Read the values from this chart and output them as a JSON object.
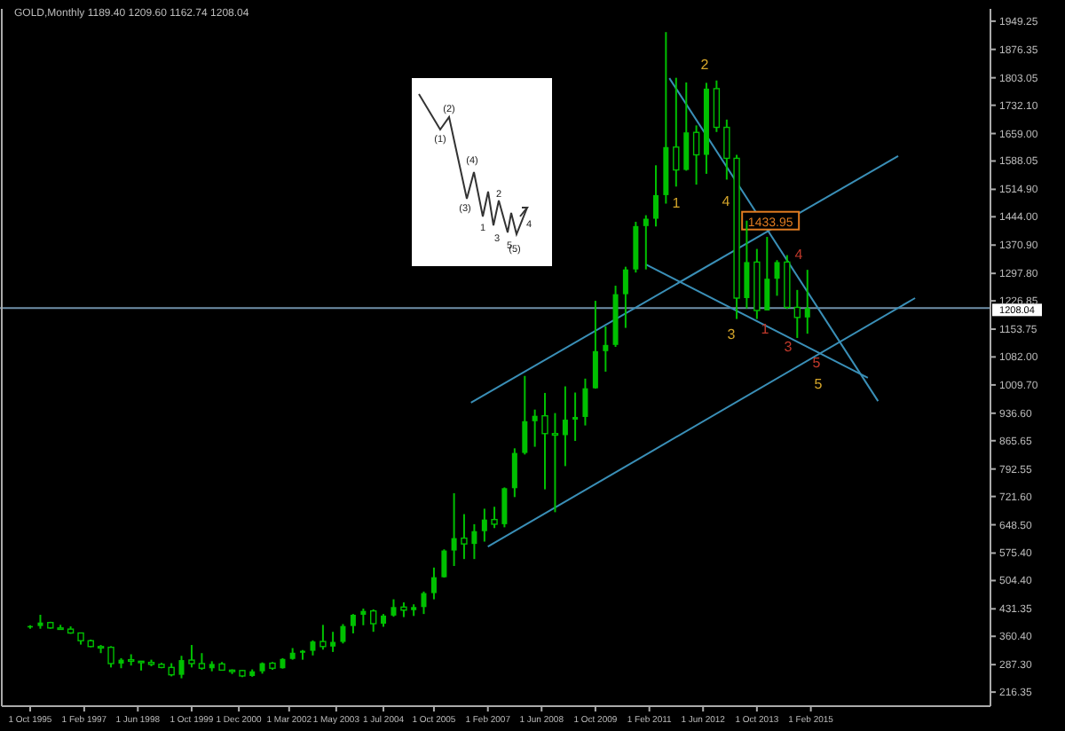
{
  "chart_data": {
    "type": "candlestick",
    "title": "GOLD,Monthly  1189.40 1209.60 1162.74 1208.04",
    "x": [
      "1995-10",
      "1996-01",
      "1996-04",
      "1996-07",
      "1996-10",
      "1997-01",
      "1997-04",
      "1997-07",
      "1997-10",
      "1998-01",
      "1998-04",
      "1998-07",
      "1998-10",
      "1999-01",
      "1999-04",
      "1999-07",
      "1999-10",
      "2000-01",
      "2000-04",
      "2000-07",
      "2000-10",
      "2001-01",
      "2001-04",
      "2001-07",
      "2001-10",
      "2002-01",
      "2002-04",
      "2002-07",
      "2002-10",
      "2003-01",
      "2003-04",
      "2003-07",
      "2003-10",
      "2004-01",
      "2004-04",
      "2004-07",
      "2004-10",
      "2005-01",
      "2005-04",
      "2005-07",
      "2005-10",
      "2006-01",
      "2006-04",
      "2006-07",
      "2006-10",
      "2007-01",
      "2007-04",
      "2007-07",
      "2007-10",
      "2008-01",
      "2008-04",
      "2008-07",
      "2008-10",
      "2009-01",
      "2009-04",
      "2009-07",
      "2009-10",
      "2010-01",
      "2010-04",
      "2010-07",
      "2010-10",
      "2011-01",
      "2011-04",
      "2011-07",
      "2011-10",
      "2012-01",
      "2012-04",
      "2012-07",
      "2012-10",
      "2013-01",
      "2013-04",
      "2013-07",
      "2013-10",
      "2014-01",
      "2014-04",
      "2014-07",
      "2014-10",
      "2015-01"
    ],
    "ohlc": [
      [
        384,
        389,
        380,
        387
      ],
      [
        387,
        416,
        380,
        396
      ],
      [
        396,
        398,
        380,
        382
      ],
      [
        382,
        390,
        378,
        379
      ],
      [
        379,
        386,
        367,
        369
      ],
      [
        369,
        370,
        339,
        349
      ],
      [
        349,
        352,
        332,
        334
      ],
      [
        334,
        338,
        317,
        332
      ],
      [
        332,
        335,
        280,
        290
      ],
      [
        290,
        304,
        278,
        300
      ],
      [
        300,
        314,
        285,
        296
      ],
      [
        296,
        297,
        272,
        293
      ],
      [
        293,
        300,
        283,
        288
      ],
      [
        288,
        292,
        278,
        280
      ],
      [
        280,
        291,
        257,
        261
      ],
      [
        261,
        310,
        252,
        299
      ],
      [
        299,
        338,
        280,
        290
      ],
      [
        290,
        317,
        274,
        278
      ],
      [
        278,
        296,
        270,
        289
      ],
      [
        289,
        294,
        272,
        273
      ],
      [
        273,
        275,
        263,
        272
      ],
      [
        272,
        274,
        255,
        258
      ],
      [
        258,
        275,
        256,
        270
      ],
      [
        270,
        293,
        264,
        291
      ],
      [
        291,
        294,
        274,
        278
      ],
      [
        278,
        304,
        277,
        302
      ],
      [
        302,
        330,
        300,
        318
      ],
      [
        318,
        325,
        300,
        323
      ],
      [
        323,
        350,
        311,
        347
      ],
      [
        347,
        390,
        326,
        334
      ],
      [
        334,
        372,
        320,
        346
      ],
      [
        346,
        392,
        342,
        387
      ],
      [
        387,
        418,
        368,
        416
      ],
      [
        416,
        432,
        389,
        426
      ],
      [
        426,
        430,
        372,
        393
      ],
      [
        393,
        418,
        385,
        414
      ],
      [
        414,
        456,
        411,
        436
      ],
      [
        436,
        448,
        410,
        428
      ],
      [
        428,
        443,
        413,
        436
      ],
      [
        436,
        476,
        418,
        472
      ],
      [
        472,
        538,
        456,
        513
      ],
      [
        513,
        585,
        512,
        582
      ],
      [
        582,
        730,
        542,
        614
      ],
      [
        614,
        676,
        560,
        599
      ],
      [
        599,
        650,
        560,
        632
      ],
      [
        632,
        690,
        605,
        662
      ],
      [
        662,
        695,
        640,
        650
      ],
      [
        650,
        745,
        642,
        743
      ],
      [
        743,
        846,
        720,
        834
      ],
      [
        834,
        1033,
        830,
        916
      ],
      [
        916,
        946,
        850,
        930
      ],
      [
        930,
        989,
        740,
        884
      ],
      [
        884,
        937,
        681,
        880
      ],
      [
        880,
        1006,
        800,
        920
      ],
      [
        920,
        990,
        865,
        927
      ],
      [
        927,
        1026,
        905,
        1001
      ],
      [
        1001,
        1227,
        1000,
        1097
      ],
      [
        1097,
        1161,
        1044,
        1113
      ],
      [
        1113,
        1266,
        1108,
        1244
      ],
      [
        1244,
        1315,
        1157,
        1308
      ],
      [
        1308,
        1431,
        1300,
        1420
      ],
      [
        1420,
        1448,
        1308,
        1439
      ],
      [
        1439,
        1577,
        1419,
        1500
      ],
      [
        1500,
        1921,
        1478,
        1624
      ],
      [
        1624,
        1803,
        1522,
        1565
      ],
      [
        1565,
        1791,
        1563,
        1662
      ],
      [
        1662,
        1680,
        1527,
        1604
      ],
      [
        1604,
        1790,
        1555,
        1775
      ],
      [
        1775,
        1796,
        1663,
        1675
      ],
      [
        1675,
        1695,
        1540,
        1595
      ],
      [
        1595,
        1604,
        1180,
        1234
      ],
      [
        1234,
        1434,
        1207,
        1327
      ],
      [
        1327,
        1361,
        1180,
        1202
      ],
      [
        1202,
        1392,
        1202,
        1284
      ],
      [
        1284,
        1332,
        1240,
        1327
      ],
      [
        1327,
        1345,
        1206,
        1210
      ],
      [
        1210,
        1255,
        1131,
        1184
      ],
      [
        1184,
        1307,
        1142,
        1208
      ]
    ],
    "color": "#00c000",
    "series": [
      {
        "type": "line",
        "x": [
          "2011-08",
          "2016-10"
        ],
        "values": [
          1802,
          968
        ],
        "color": "#3a8fb7"
      },
      {
        "type": "line",
        "x": [
          "2011-01",
          "2016-07"
        ],
        "values": [
          1321,
          1028
        ],
        "color": "#3a8fb7"
      },
      {
        "type": "line",
        "x": [
          "2006-09",
          "2017-04"
        ],
        "values": [
          964,
          1601
        ],
        "color": "#3a8fb7"
      },
      {
        "type": "line",
        "x": [
          "2007-02",
          "2017-09"
        ],
        "values": [
          592,
          1234
        ],
        "color": "#3a8fb7"
      }
    ],
    "ref_lines": [
      {
        "axis": "y",
        "value": 1208.04,
        "label": "1208.04",
        "color": "#6f8fa8"
      }
    ],
    "xlim": [
      "1995-01-01",
      "2019-07-15"
    ],
    "xticks": [
      {
        "value": "1995-10-01",
        "label": "1 Oct 1995"
      },
      {
        "value": "1997-02-01",
        "label": "1 Feb 1997"
      },
      {
        "value": "1998-06-01",
        "label": "1 Jun 1998"
      },
      {
        "value": "1999-10-01",
        "label": "1 Oct 1999"
      },
      {
        "value": "2000-12-01",
        "label": "1 Dec 2000"
      },
      {
        "value": "2002-03-01",
        "label": "1 Mar 2002"
      },
      {
        "value": "2003-05-01",
        "label": "1 May 2003"
      },
      {
        "value": "2004-07-01",
        "label": "1 Jul 2004"
      },
      {
        "value": "2005-10-01",
        "label": "1 Oct 2005"
      },
      {
        "value": "2007-02-01",
        "label": "1 Feb 2007"
      },
      {
        "value": "2008-06-01",
        "label": "1 Jun 2008"
      },
      {
        "value": "2009-10-01",
        "label": "1 Oct 2009"
      },
      {
        "value": "2011-02-01",
        "label": "1 Feb 2011"
      },
      {
        "value": "2012-06-01",
        "label": "1 Jun 2012"
      },
      {
        "value": "2013-10-01",
        "label": "1 Oct 2013"
      },
      {
        "value": "2015-02-01",
        "label": "1 Feb 2015"
      }
    ],
    "ylim": [
      180,
      1981
    ],
    "yticks": [
      {
        "value": 1949.25,
        "label": "1949.25"
      },
      {
        "value": 1876.35,
        "label": "1876.35"
      },
      {
        "value": 1803.05,
        "label": "1803.05"
      },
      {
        "value": 1732.1,
        "label": "1732.10"
      },
      {
        "value": 1659,
        "label": "1659.00"
      },
      {
        "value": 1588.05,
        "label": "1588.05"
      },
      {
        "value": 1514.9,
        "label": "1514.90"
      },
      {
        "value": 1444,
        "label": "1444.00"
      },
      {
        "value": 1370.9,
        "label": "1370.90"
      },
      {
        "value": 1297.8,
        "label": "1297.80"
      },
      {
        "value": 1226.85,
        "label": "1226.85"
      },
      {
        "value": 1153.75,
        "label": "1153.75"
      },
      {
        "value": 1082,
        "label": "1082.00"
      },
      {
        "value": 1009.7,
        "label": "1009.70"
      },
      {
        "value": 936.6,
        "label": "936.60"
      },
      {
        "value": 865.65,
        "label": "865.65"
      },
      {
        "value": 792.55,
        "label": "792.55"
      },
      {
        "value": 721.6,
        "label": "721.60"
      },
      {
        "value": 648.5,
        "label": "648.50"
      },
      {
        "value": 575.4,
        "label": "575.40"
      },
      {
        "value": 504.4,
        "label": "504.40"
      },
      {
        "value": 431.35,
        "label": "431.35"
      },
      {
        "value": 360.4,
        "label": "360.40"
      },
      {
        "value": 287.3,
        "label": "287.30"
      },
      {
        "value": 216.35,
        "label": "216.35"
      }
    ],
    "grid": false,
    "annotations": [
      "1",
      "2",
      "3",
      "4",
      "5",
      "1",
      "3",
      "4",
      "5",
      {
        "text": "1433.95",
        "x": "2014-02",
        "y": 1434
      },
      "(1)",
      "(2)",
      "(3)",
      "(4)",
      "(5)",
      "1",
      "2",
      "3",
      "4",
      "5"
    ]
  }
}
